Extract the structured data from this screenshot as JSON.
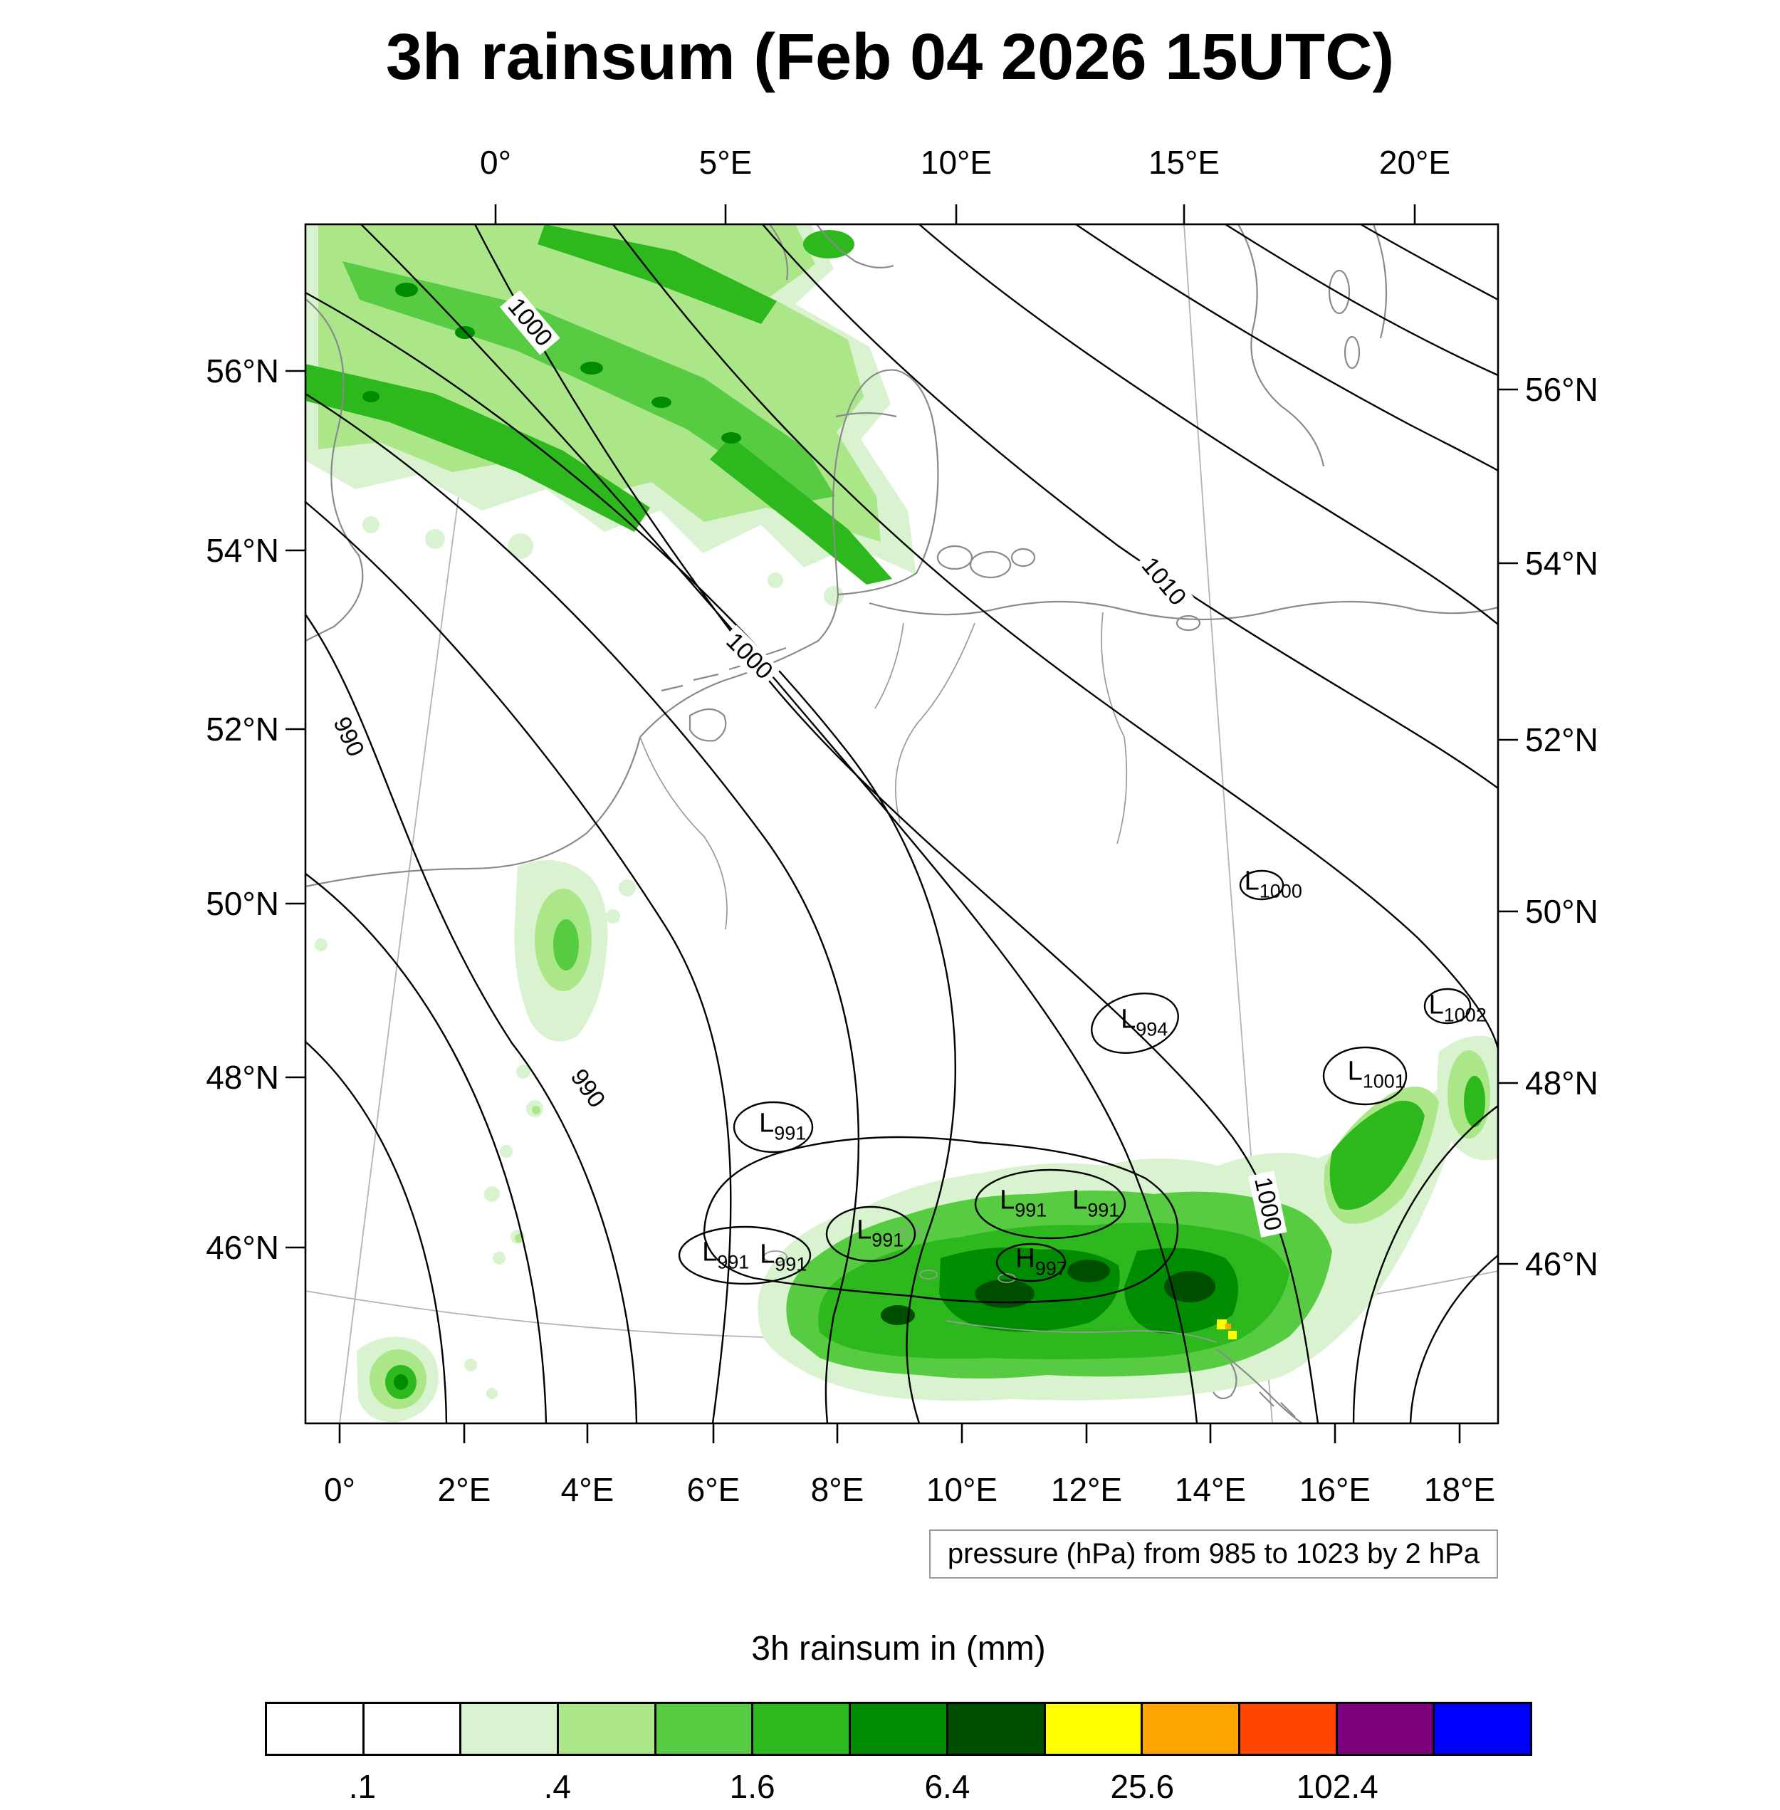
{
  "title": "3h rainsum (Feb 04 2026 15UTC)",
  "axes": {
    "top": [
      "0°",
      "5°E",
      "10°E",
      "15°E",
      "20°E"
    ],
    "bottom": [
      "0°",
      "2°E",
      "4°E",
      "6°E",
      "8°E",
      "10°E",
      "12°E",
      "14°E",
      "16°E",
      "18°E"
    ],
    "left": [
      "56°N",
      "54°N",
      "52°N",
      "50°N",
      "48°N",
      "46°N"
    ],
    "right": [
      "56°N",
      "54°N",
      "52°N",
      "50°N",
      "48°N",
      "46°N"
    ]
  },
  "caption": "pressure (hPa) from 985 to 1023 by 2 hPa",
  "contour_labels": [
    "1000",
    "1010",
    "1000",
    "990",
    "990",
    "1000"
  ],
  "pressure_centers": [
    {
      "letter": "L",
      "value": "1000"
    },
    {
      "letter": "L",
      "value": "1002"
    },
    {
      "letter": "L",
      "value": "994"
    },
    {
      "letter": "L",
      "value": "1001"
    },
    {
      "letter": "L",
      "value": "991"
    },
    {
      "letter": "L",
      "value": "991"
    },
    {
      "letter": "L",
      "value": "991"
    },
    {
      "letter": "L",
      "value": "991"
    },
    {
      "letter": "L",
      "value": "991"
    },
    {
      "letter": "L",
      "value": "991"
    },
    {
      "letter": "H",
      "value": "997"
    }
  ],
  "legend": {
    "title": "3h rainsum in (mm)",
    "tick_labels": [
      ".1",
      ".4",
      "1.6",
      "6.4",
      "25.6",
      "102.4"
    ],
    "colors": [
      "#ffffff",
      "#ffffff",
      "#d9f2cf",
      "#abe789",
      "#57cc43",
      "#2db81e",
      "#008c00",
      "#004f00",
      "#ffff00",
      "#ffa500",
      "#ff4500",
      "#7d007d",
      "#0000ff"
    ]
  },
  "chart_data": {
    "type": "heatmap",
    "title": "3h rainsum (Feb 04 2026 15UTC)",
    "shaded_field": "3h rainsum in (mm)",
    "shading_levels_mm": [
      0.1,
      0.2,
      0.4,
      0.8,
      1.6,
      3.2,
      6.4,
      12.8,
      25.6,
      51.2,
      102.4,
      204.8
    ],
    "labeled_shading_levels_mm": [
      0.1,
      0.4,
      1.6,
      6.4,
      25.6,
      102.4
    ],
    "contoured_field": "pressure (hPa)",
    "contour_range_hPa": [
      985,
      1023
    ],
    "contour_interval_hPa": 2,
    "contour_line_labels_hPa": [
      990,
      990,
      1000,
      1000,
      1000,
      1010
    ],
    "lon_ticks_top": [
      "0°",
      "5°E",
      "10°E",
      "15°E",
      "20°E"
    ],
    "lon_ticks_bottom": [
      "0°",
      "2°E",
      "4°E",
      "6°E",
      "8°E",
      "10°E",
      "12°E",
      "14°E",
      "16°E",
      "18°E"
    ],
    "lat_ticks": [
      "56°N",
      "54°N",
      "52°N",
      "50°N",
      "48°N",
      "46°N"
    ],
    "pressure_centers": [
      {
        "type": "L",
        "value_hPa": 1000
      },
      {
        "type": "L",
        "value_hPa": 1002
      },
      {
        "type": "L",
        "value_hPa": 994
      },
      {
        "type": "L",
        "value_hPa": 1001
      },
      {
        "type": "L",
        "value_hPa": 991
      },
      {
        "type": "L",
        "value_hPa": 991
      },
      {
        "type": "L",
        "value_hPa": 991
      },
      {
        "type": "L",
        "value_hPa": 991
      },
      {
        "type": "L",
        "value_hPa": 991
      },
      {
        "type": "L",
        "value_hPa": 991
      },
      {
        "type": "H",
        "value_hPa": 997
      }
    ],
    "rain_areas": [
      "broad WNW-ESE band of 0.2-6 mm over the North Sea / northwest corner (54.5-57.5N, 0-8E)",
      "small area near 3.5E 48.5-50N",
      "heavy band 6-30 mm (locally >25 mm, yellow) along the Alps / northern Italy 45-46.5N, 8-16E",
      "small area at the eastern border near 17.5E 47-48.5N",
      "small cell near 1E 44.5N"
    ],
    "legend_position": "bottom",
    "grid": "lat/lon graticule, thin gray"
  }
}
